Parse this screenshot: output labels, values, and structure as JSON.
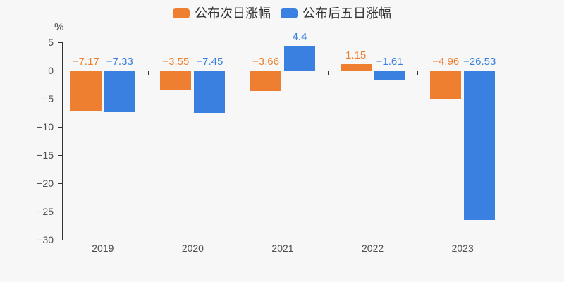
{
  "legend": {
    "items": [
      {
        "label": "公布次日涨幅",
        "color": "#ee7f31"
      },
      {
        "label": "公布后五日涨幅",
        "color": "#3a80e0"
      }
    ]
  },
  "chart_data": {
    "type": "bar",
    "categories": [
      "2019",
      "2020",
      "2021",
      "2022",
      "2023"
    ],
    "series": [
      {
        "name": "公布次日涨幅",
        "color": "#ee7f31",
        "values": [
          -7.17,
          -3.55,
          -3.66,
          1.15,
          -4.96
        ]
      },
      {
        "name": "公布后五日涨幅",
        "color": "#3a80e0",
        "values": [
          -7.33,
          -7.45,
          4.4,
          -1.61,
          -26.53
        ]
      }
    ],
    "title": "",
    "xlabel": "",
    "ylabel": "%",
    "ylim": [
      -30,
      5
    ],
    "yticks": [
      5,
      0,
      -5,
      -10,
      -15,
      -20,
      -25,
      -30
    ],
    "grid": false,
    "legend_position": "top-center",
    "data_labels": true,
    "background_color": "#f7f7f7",
    "axis_color": "#333333",
    "tick_label_color": "#4d4d4d"
  }
}
